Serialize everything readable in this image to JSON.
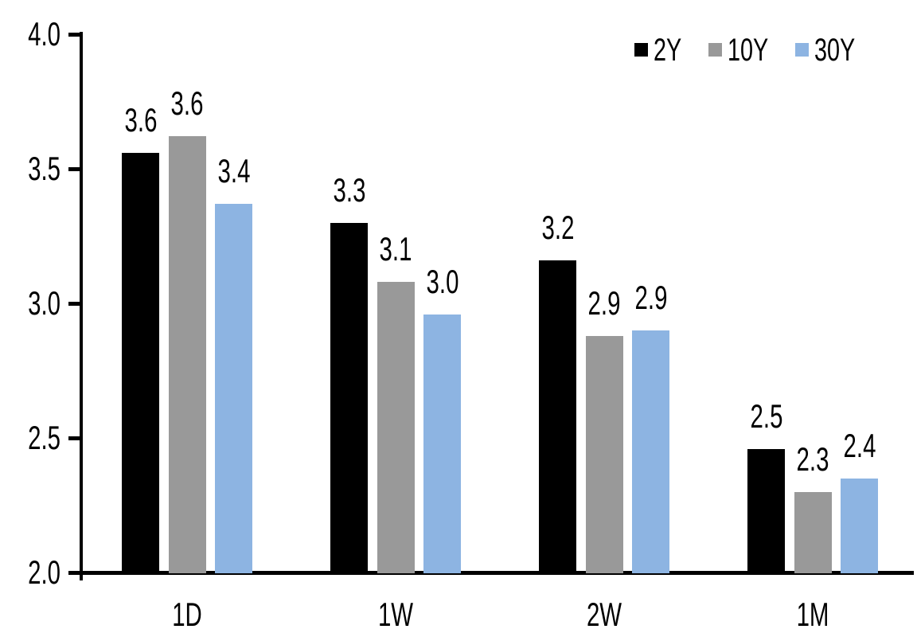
{
  "chart_data": {
    "type": "bar",
    "title": "",
    "xlabel": "",
    "ylabel": "",
    "background_color": "#FFFFFF",
    "axis_color": "#000000",
    "grid": false,
    "ylim": [
      2.0,
      4.0
    ],
    "categories": [
      "1D",
      "1W",
      "2W",
      "1M"
    ],
    "series": [
      {
        "name": "2Y",
        "color": "#000000",
        "values": [
          3.56,
          3.3,
          3.16,
          2.46
        ],
        "labels": [
          "3.6",
          "3.3",
          "3.2",
          "2.5"
        ]
      },
      {
        "name": "10Y",
        "color": "#999999",
        "values": [
          3.62,
          3.08,
          2.88,
          2.3
        ],
        "labels": [
          "3.6",
          "3.1",
          "2.9",
          "2.3"
        ]
      },
      {
        "name": "30Y",
        "color": "#8DB4E2",
        "values": [
          3.37,
          2.96,
          2.9,
          2.35
        ],
        "labels": [
          "3.4",
          "3.0",
          "2.9",
          "2.4"
        ]
      }
    ],
    "yticks": [
      {
        "value": 4.0,
        "label": "4.0"
      },
      {
        "value": 3.5,
        "label": "3.5"
      },
      {
        "value": 3.0,
        "label": "3.0"
      },
      {
        "value": 2.5,
        "label": "2.5"
      },
      {
        "value": 2.0,
        "label": "2.0"
      }
    ],
    "legend": {
      "position": "top-right",
      "entries": [
        "2Y",
        "10Y",
        "30Y"
      ]
    }
  }
}
